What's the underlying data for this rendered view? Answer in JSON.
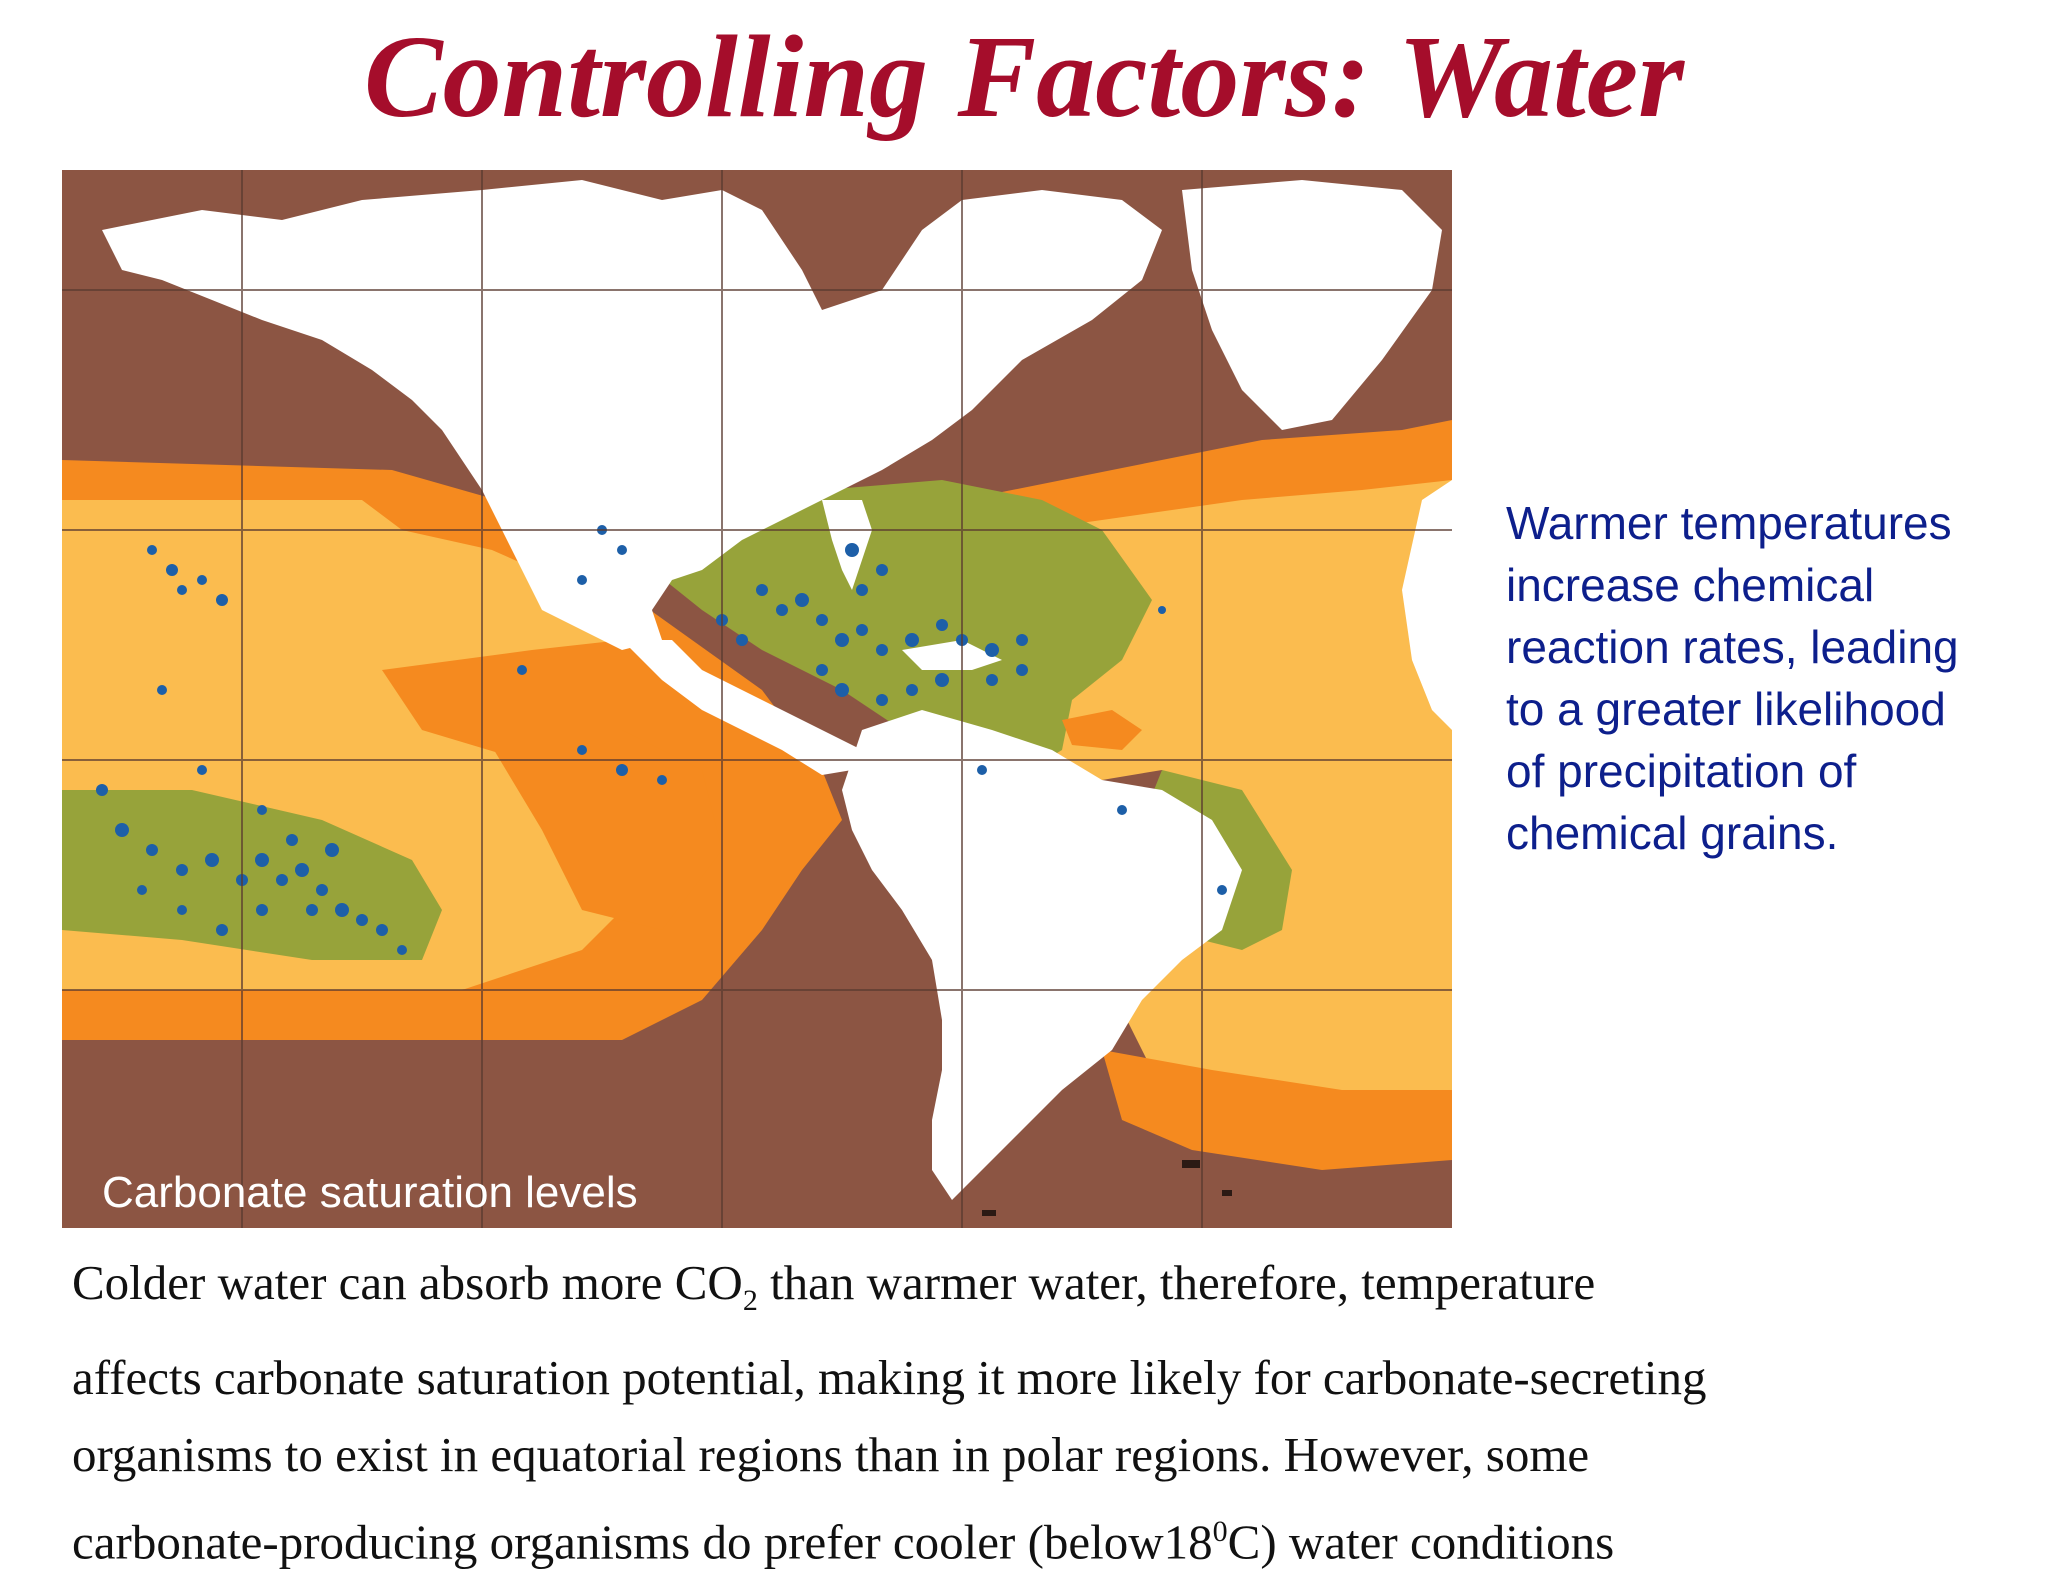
{
  "slide": {
    "title": "Controlling Factors: Water"
  },
  "map": {
    "caption": "Carbonate saturation levels",
    "colors": {
      "very_low": "#8c5543",
      "low": "#f58a1f",
      "medium": "#fbbc4f",
      "high": "#97a33a",
      "reef_dots": "#1d5fa8",
      "land": "#ffffff",
      "grid": "#5a3a30"
    }
  },
  "side_note": {
    "lines": [
      "Warmer temperatures",
      "increase chemical",
      "reaction rates, leading",
      "to a greater likelihood",
      "of precipitation of",
      "chemical grains."
    ],
    "color": "#0d1f8c"
  },
  "body_text": {
    "line1_a": "Colder water can absorb more CO",
    "line1_sub": "2",
    "line1_b": " than warmer water, therefore, temperature",
    "line2": "affects carbonate saturation potential, making it more likely for carbonate-secreting",
    "line3": "organisms to exist in equatorial regions than in polar regions.  However, some",
    "line4_a": "carbonate-producing organisms do prefer cooler (below18",
    "line4_sup": "0",
    "line4_b": "C) water conditions"
  },
  "title_color": "#a50d2b"
}
